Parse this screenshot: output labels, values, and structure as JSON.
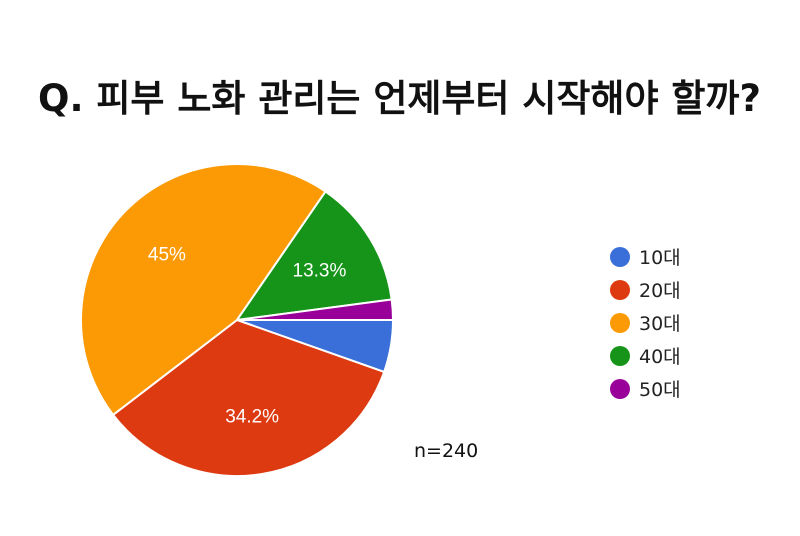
{
  "chart_data": {
    "type": "pie",
    "title": "Q. 피부 노화 관리는 언제부터 시작해야 할까?",
    "categories": [
      "10대",
      "20대",
      "30대",
      "40대",
      "50대"
    ],
    "values": [
      5.4,
      34.2,
      45,
      13.3,
      2.1
    ],
    "data_labels": [
      "",
      "34.2%",
      "45%",
      "13.3%",
      ""
    ],
    "colors": [
      "#3a6fd9",
      "#dd3a12",
      "#fb9a05",
      "#169419",
      "#990099"
    ],
    "legend_position": "right"
  },
  "annotation": "n=240"
}
